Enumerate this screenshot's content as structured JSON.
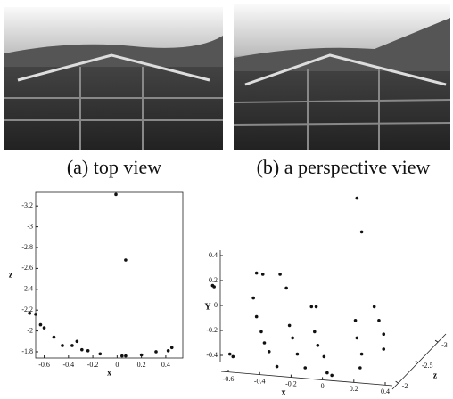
{
  "captions": [
    "(a) top view",
    "(b) a perspective view"
  ],
  "chart_data": [
    {
      "type": "scatter",
      "xlabel": "x",
      "ylabel": "z",
      "x": [
        -0.01,
        0.07,
        -0.72,
        -0.67,
        -0.63,
        -0.6,
        -0.52,
        -0.45,
        -0.37,
        -0.33,
        -0.29,
        -0.24,
        -0.14,
        0.04,
        0.07,
        0.2,
        0.32,
        0.42,
        0.45
      ],
      "values": [
        -3.31,
        -2.68,
        -2.17,
        -2.16,
        -2.06,
        -2.03,
        -1.94,
        -1.86,
        -1.86,
        -1.9,
        -1.82,
        -1.81,
        -1.78,
        -1.76,
        -1.76,
        -1.77,
        -1.8,
        -1.81,
        -1.84
      ],
      "xlim": [
        -0.67,
        0.54
      ],
      "ylim": [
        -1.74,
        -3.33
      ],
      "xticks": [
        -0.6,
        -0.4,
        -0.2,
        0,
        0.2,
        0.4
      ],
      "yticks": [
        -3.2,
        -3,
        -2.8,
        -2.6,
        -2.4,
        -2.2,
        -2,
        -1.8
      ]
    },
    {
      "type": "scatter3d",
      "xlabel": "x",
      "ylabel": "Y",
      "zlabel": "z",
      "x": [
        -0.7,
        -0.69,
        -0.42,
        -0.38,
        -0.44,
        -0.42,
        -0.39,
        -0.37,
        -0.34,
        -0.59,
        -0.57,
        -0.27,
        -0.23,
        -0.21,
        -0.19,
        -0.16,
        -0.11,
        -0.07,
        -0.04,
        -0.05,
        -0.03,
        0.01,
        0.03,
        0.06,
        0.22,
        0.25,
        0.21,
        0.22,
        0.25,
        0.24,
        0.33,
        0.36,
        0.39,
        0.39,
        -0.29
      ],
      "values": [
        0.16,
        0.15,
        0.26,
        0.25,
        0.06,
        -0.09,
        -0.21,
        -0.3,
        -0.37,
        -0.39,
        -0.41,
        0.25,
        0.14,
        -0.16,
        -0.26,
        -0.39,
        -0.5,
        -0.01,
        -0.01,
        -0.21,
        -0.32,
        -0.41,
        -0.54,
        -0.56,
        0.86,
        0.59,
        -0.12,
        -0.26,
        -0.39,
        -0.5,
        -0.01,
        -0.12,
        -0.23,
        -0.35,
        -0.49
      ],
      "xlim": [
        -0.75,
        0.5
      ],
      "ylim": [
        -0.6,
        0.9
      ],
      "zlim": [
        -1.85,
        -3.2
      ],
      "xticks": [
        -0.6,
        -0.4,
        -0.2,
        0,
        0.2,
        0.4
      ],
      "yticks": [
        -0.4,
        -0.2,
        0,
        0.2,
        0.4
      ],
      "zticks": [
        -3,
        -2.5,
        -2
      ]
    }
  ]
}
